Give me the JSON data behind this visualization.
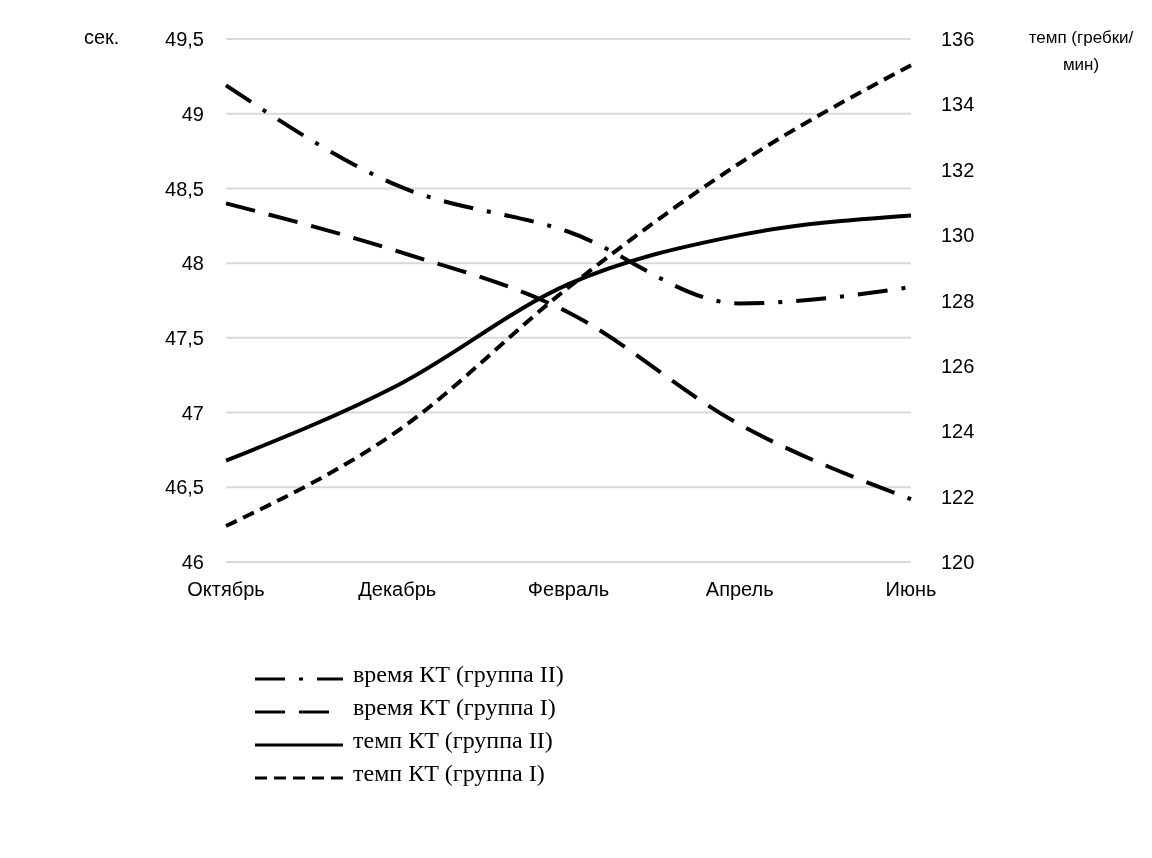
{
  "chart_data": {
    "type": "line",
    "categories": [
      "Октябрь",
      "Декабрь",
      "Февраль",
      "Апрель",
      "Июнь"
    ],
    "ylabel": "сек.",
    "y2label": "темп (гребки/мин)",
    "ylim": [
      46,
      49.5
    ],
    "yticks": [
      46,
      {
        "value": 46.5,
        "label": "46,5"
      },
      47,
      {
        "value": 47.5,
        "label": "47,5"
      },
      48,
      {
        "value": 48.5,
        "label": "48,5"
      },
      49,
      {
        "value": 49.5,
        "label": "49,5"
      }
    ],
    "y2lim": [
      120,
      136
    ],
    "y2ticks": [
      120,
      122,
      124,
      126,
      128,
      130,
      132,
      134,
      136
    ],
    "grid": "y",
    "legend": "bottom",
    "marker": "none",
    "series": [
      {
        "name": "время КТ (группа II)",
        "color": "#000000",
        "line_style": "dashdot",
        "values": [
          49.19,
          48.52,
          48.21,
          47.73,
          47.84
        ]
      },
      {
        "name": "время КТ (группа I)",
        "color": "#000000",
        "line_style": "longdash",
        "values": [
          48.4,
          48.08,
          47.67,
          46.92,
          46.42
        ]
      },
      {
        "name": "темп КТ (группа II)",
        "color": "#000000",
        "line_style": "solid",
        "axis": "y2",
        "values": [
          123.1,
          125.4,
          128.5,
          130.0,
          130.6
        ]
      },
      {
        "name": "темп КТ (группа I)",
        "color": "#000000",
        "line_style": "dashed",
        "axis": "y2",
        "values": [
          121.1,
          124.0,
          128.4,
          132.2,
          135.2
        ]
      }
    ]
  }
}
